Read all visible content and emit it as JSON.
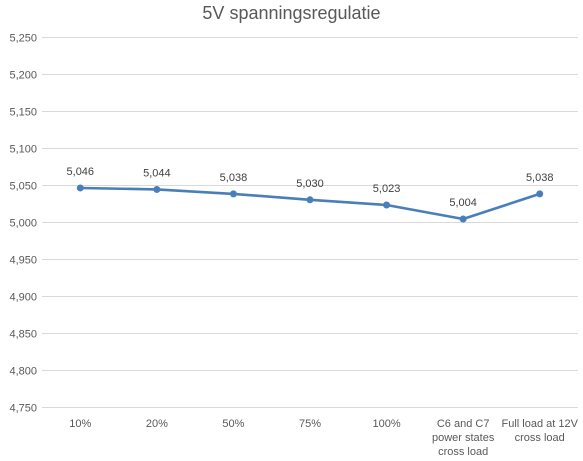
{
  "chart_data": {
    "type": "line",
    "title": "5V spanningsregulatie",
    "xlabel": "",
    "ylabel": "",
    "categories": [
      [
        "10%"
      ],
      [
        "20%"
      ],
      [
        "50%"
      ],
      [
        "75%"
      ],
      [
        "100%"
      ],
      [
        "C6 and C7",
        "power states",
        "cross load"
      ],
      [
        "Full load at 12V",
        "cross load"
      ]
    ],
    "series": [
      {
        "values": [
          5.046,
          5.044,
          5.038,
          5.03,
          5.023,
          5.004,
          5.038
        ],
        "labels": [
          "5,046",
          "5,044",
          "5,038",
          "5,030",
          "5,023",
          "5,004",
          "5,038"
        ],
        "color": "#4a7ebb"
      }
    ],
    "ylim": [
      4.75,
      5.25
    ],
    "yticks": [
      {
        "value": 5.25,
        "label": "5,250"
      },
      {
        "value": 5.2,
        "label": "5,200"
      },
      {
        "value": 5.15,
        "label": "5,150"
      },
      {
        "value": 5.1,
        "label": "5,100"
      },
      {
        "value": 5.05,
        "label": "5,050"
      },
      {
        "value": 5.0,
        "label": "5,000"
      },
      {
        "value": 4.95,
        "label": "4,950"
      },
      {
        "value": 4.9,
        "label": "4,900"
      },
      {
        "value": 4.85,
        "label": "4,850"
      },
      {
        "value": 4.8,
        "label": "4,800"
      },
      {
        "value": 4.75,
        "label": "4,750"
      }
    ],
    "grid": true,
    "legend": "none"
  }
}
